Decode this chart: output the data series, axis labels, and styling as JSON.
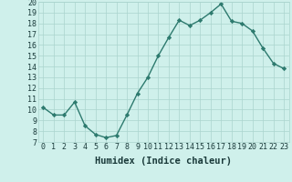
{
  "xlabel": "Humidex (Indice chaleur)",
  "x": [
    0,
    1,
    2,
    3,
    4,
    5,
    6,
    7,
    8,
    9,
    10,
    11,
    12,
    13,
    14,
    15,
    16,
    17,
    18,
    19,
    20,
    21,
    22,
    23
  ],
  "y": [
    10.2,
    9.5,
    9.5,
    10.7,
    8.5,
    7.7,
    7.4,
    7.6,
    9.5,
    11.5,
    13.0,
    15.0,
    16.7,
    18.3,
    17.8,
    18.3,
    19.0,
    19.8,
    18.2,
    18.0,
    17.3,
    15.7,
    14.3,
    13.8
  ],
  "line_color": "#2d7a6e",
  "marker": "D",
  "markersize": 2.2,
  "linewidth": 1.0,
  "bg_color": "#cff0eb",
  "grid_color": "#aad4ce",
  "tick_color": "#1a3a3a",
  "label_color": "#1a3a3a",
  "ylim": [
    7,
    20
  ],
  "yticks": [
    7,
    8,
    9,
    10,
    11,
    12,
    13,
    14,
    15,
    16,
    17,
    18,
    19,
    20
  ],
  "xticks": [
    0,
    1,
    2,
    3,
    4,
    5,
    6,
    7,
    8,
    9,
    10,
    11,
    12,
    13,
    14,
    15,
    16,
    17,
    18,
    19,
    20,
    21,
    22,
    23
  ],
  "xlabel_fontsize": 7.5,
  "tick_fontsize": 6.0
}
